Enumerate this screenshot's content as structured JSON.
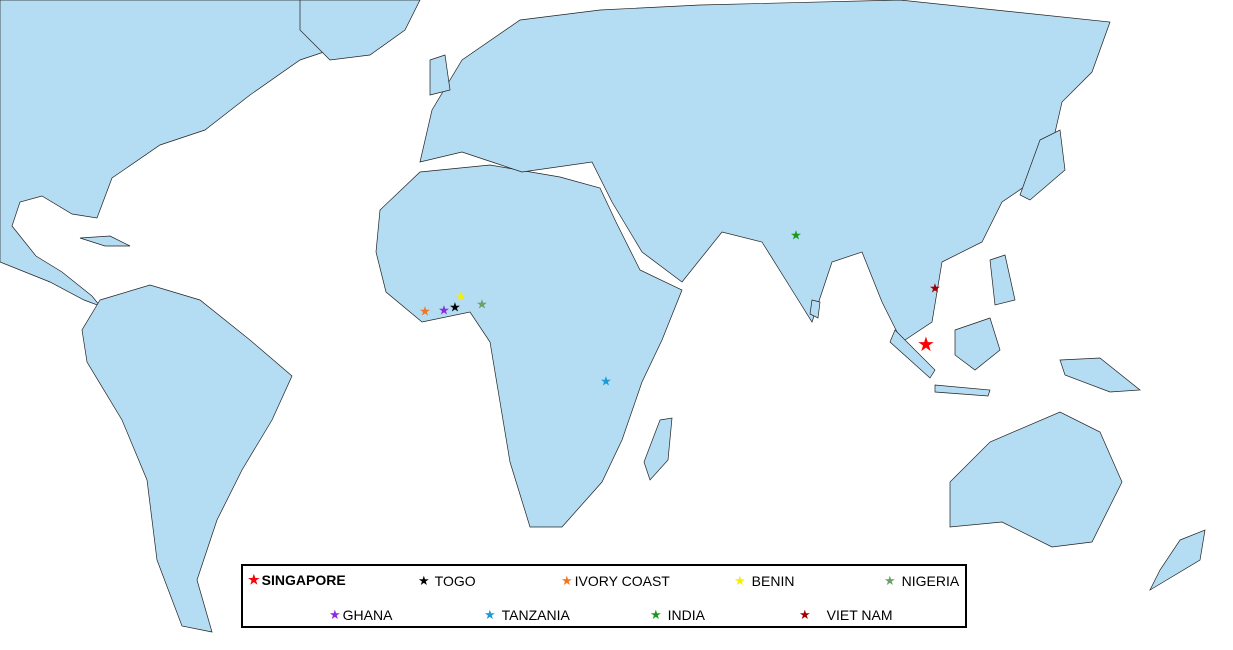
{
  "legend": {
    "items": [
      {
        "label": "SINGAPORE",
        "color": "#ff0000"
      },
      {
        "label": "TOGO",
        "color": "#000000"
      },
      {
        "label": "IVORY COAST",
        "color": "#f07820"
      },
      {
        "label": "BENIN",
        "color": "#f5f000"
      },
      {
        "label": "NIGERIA",
        "color": "#6aa06a"
      },
      {
        "label": "GHANA",
        "color": "#8a2be2"
      },
      {
        "label": "TANZANIA",
        "color": "#1a9ad6"
      },
      {
        "label": "INDIA",
        "color": "#1a9a1a"
      },
      {
        "label": "VIET NAM",
        "color": "#a00000"
      }
    ]
  },
  "marker_icon": "star-icon",
  "land_color": "#b4dcf2"
}
